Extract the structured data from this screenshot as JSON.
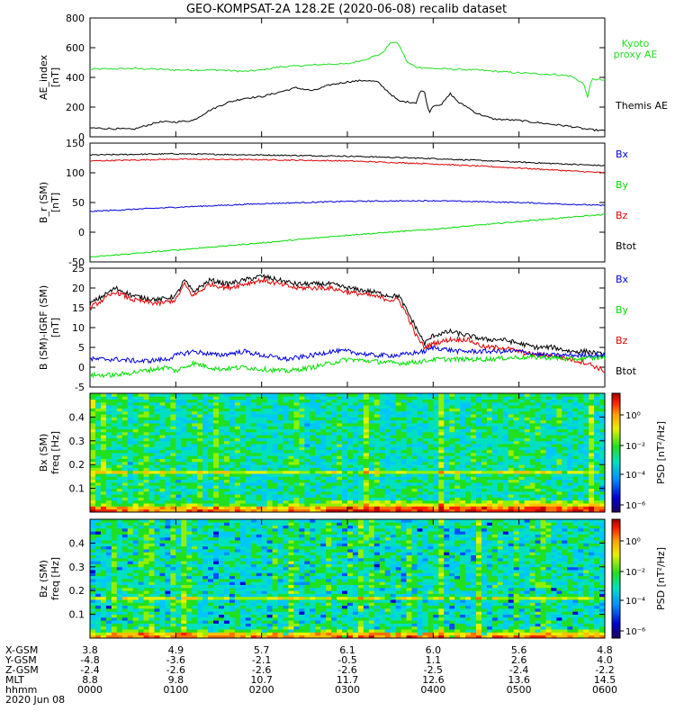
{
  "title": "GEO-KOMPSAT-2A 128.2E (2020-06-08) recalib dataset",
  "colors": {
    "black": "#000000",
    "red": "#e00000",
    "green": "#00e000",
    "blue": "#0000e0",
    "kyoto": "#20e020"
  },
  "chart_data": [
    {
      "type": "line",
      "title": "",
      "ylabel": "AE_index",
      "yunit": "[nT]",
      "ylim": [
        0,
        800
      ],
      "yticks": [
        "0",
        "200",
        "400",
        "600",
        "800"
      ],
      "xlim": [
        0,
        6
      ],
      "legend_placement": "right",
      "series": [
        {
          "name": "Kyoto proxy AE",
          "color": "#20e020",
          "x": [
            0,
            0.5,
            0.8,
            1.0,
            1.5,
            1.8,
            2.0,
            2.2,
            2.5,
            2.8,
            3.0,
            3.2,
            3.4,
            3.5,
            3.55,
            3.6,
            3.7,
            3.8,
            4.0,
            4.5,
            5.0,
            5.4,
            5.6,
            5.75,
            5.8,
            5.85,
            6.0
          ],
          "y": [
            455,
            460,
            455,
            450,
            450,
            440,
            450,
            470,
            480,
            490,
            490,
            520,
            560,
            630,
            640,
            620,
            500,
            470,
            460,
            450,
            430,
            420,
            410,
            360,
            270,
            390,
            380
          ]
        },
        {
          "name": "Themis AE",
          "color": "#000000",
          "x": [
            0,
            0.5,
            0.8,
            1.0,
            1.2,
            1.4,
            1.6,
            1.8,
            2.0,
            2.2,
            2.4,
            2.6,
            2.8,
            3.0,
            3.2,
            3.35,
            3.5,
            3.6,
            3.8,
            3.85,
            3.9,
            3.95,
            4.0,
            4.1,
            4.2,
            4.3,
            4.4,
            4.5,
            4.7,
            5.0,
            5.3,
            5.6,
            5.8,
            6.0
          ],
          "y": [
            60,
            50,
            100,
            100,
            110,
            180,
            230,
            260,
            270,
            300,
            330,
            310,
            350,
            370,
            380,
            370,
            290,
            240,
            230,
            310,
            300,
            160,
            210,
            220,
            290,
            230,
            200,
            160,
            120,
            110,
            90,
            70,
            50,
            40
          ]
        }
      ]
    },
    {
      "type": "line",
      "title": "",
      "ylabel": "B_r (SM)",
      "yunit": "[nT]",
      "ylim": [
        -50,
        150
      ],
      "yticks": [
        "-50",
        "0",
        "50",
        "100",
        "150"
      ],
      "xlim": [
        0,
        6
      ],
      "legend_placement": "right",
      "legend": [
        {
          "label": "Bx",
          "color": "#0000e0"
        },
        {
          "label": "By",
          "color": "#00e000"
        },
        {
          "label": "Bz",
          "color": "#e00000"
        },
        {
          "label": "Btot",
          "color": "#000000"
        }
      ],
      "series": [
        {
          "name": "Btot",
          "color": "#000000",
          "x": [
            0,
            1,
            2,
            3,
            4,
            5,
            6
          ],
          "y": [
            130,
            132,
            130,
            128,
            124,
            118,
            112
          ]
        },
        {
          "name": "Bz",
          "color": "#e00000",
          "x": [
            0,
            1,
            2,
            3,
            4,
            5,
            6
          ],
          "y": [
            120,
            123,
            122,
            120,
            115,
            108,
            100
          ]
        },
        {
          "name": "Bx",
          "color": "#0000e0",
          "x": [
            0,
            1,
            2,
            3,
            4,
            5,
            6
          ],
          "y": [
            35,
            42,
            48,
            52,
            53,
            50,
            45
          ]
        },
        {
          "name": "By",
          "color": "#00e000",
          "x": [
            0,
            1,
            2,
            3,
            4,
            5,
            6
          ],
          "y": [
            -42,
            -30,
            -18,
            -5,
            5,
            18,
            30
          ]
        }
      ]
    },
    {
      "type": "line",
      "title": "",
      "ylabel": "B (SM)-IGRF (SM)",
      "yunit": "[nT]",
      "ylim": [
        -5,
        25
      ],
      "yticks": [
        "-5",
        "0",
        "5",
        "10",
        "15",
        "20",
        "25"
      ],
      "xlim": [
        0,
        6
      ],
      "legend_placement": "right",
      "legend": [
        {
          "label": "Bx",
          "color": "#0000e0"
        },
        {
          "label": "By",
          "color": "#00e000"
        },
        {
          "label": "Bz",
          "color": "#e00000"
        },
        {
          "label": "Btot",
          "color": "#000000"
        }
      ],
      "series": [
        {
          "name": "Btot",
          "color": "#000000",
          "x": [
            0,
            0.3,
            0.5,
            0.8,
            1.0,
            1.1,
            1.2,
            1.4,
            1.6,
            1.8,
            2.0,
            2.2,
            2.4,
            2.6,
            2.8,
            3.0,
            3.3,
            3.5,
            3.6,
            3.7,
            3.8,
            3.9,
            4.0,
            4.2,
            4.4,
            4.6,
            4.8,
            5.0,
            5.2,
            5.4,
            5.6,
            5.8,
            6.0
          ],
          "y": [
            16,
            20,
            18,
            17,
            18,
            22,
            19,
            22,
            21,
            22,
            23,
            22,
            21,
            21,
            21,
            20,
            19,
            18,
            18,
            14,
            10,
            6,
            8,
            9,
            8,
            7,
            7,
            6,
            5,
            5,
            4,
            4,
            3
          ]
        },
        {
          "name": "Bz",
          "color": "#e00000",
          "x": [
            0,
            0.3,
            0.5,
            0.8,
            1.0,
            1.1,
            1.2,
            1.4,
            1.6,
            1.8,
            2.0,
            2.2,
            2.4,
            2.6,
            2.8,
            3.0,
            3.3,
            3.5,
            3.6,
            3.7,
            3.8,
            3.9,
            4.0,
            4.2,
            4.4,
            4.6,
            4.8,
            5.0,
            5.2,
            5.4,
            5.6,
            5.8,
            6.0
          ],
          "y": [
            15,
            19,
            17,
            16,
            17,
            21,
            18,
            21,
            20,
            21,
            22,
            21,
            20,
            20,
            20,
            19,
            18,
            17,
            17,
            13,
            8,
            5,
            6,
            7,
            7,
            5,
            5,
            4,
            3,
            3,
            2,
            1,
            -1
          ]
        },
        {
          "name": "Bx",
          "color": "#0000e0",
          "x": [
            0,
            0.3,
            0.6,
            0.9,
            1.0,
            1.2,
            1.5,
            1.8,
            2.0,
            2.3,
            2.6,
            2.8,
            3.0,
            3.3,
            3.6,
            3.9,
            4.0,
            4.3,
            4.6,
            5.0,
            5.3,
            5.6,
            6.0
          ],
          "y": [
            2,
            2,
            1.5,
            2,
            3,
            4,
            3,
            4,
            3,
            2,
            3,
            4,
            4,
            3,
            3,
            4,
            5,
            4,
            4,
            4,
            3,
            3,
            3
          ]
        },
        {
          "name": "By",
          "color": "#00e000",
          "x": [
            0,
            0.3,
            0.6,
            0.9,
            1.0,
            1.2,
            1.5,
            1.8,
            2.0,
            2.3,
            2.6,
            2.8,
            3.0,
            3.3,
            3.6,
            3.9,
            4.0,
            4.3,
            4.6,
            5.0,
            5.3,
            5.6,
            6.0
          ],
          "y": [
            -2,
            -2,
            -1,
            0,
            -1,
            1,
            -0.5,
            0,
            -0.5,
            -1,
            0,
            1,
            2,
            1.5,
            1,
            1.5,
            2,
            2,
            2,
            2.5,
            2.5,
            2,
            2.5
          ]
        }
      ]
    },
    {
      "type": "heatmap",
      "title": "",
      "ylabel": "Bx (SM)",
      "yunit_label": "freq [Hz]",
      "ylim": [
        0,
        0.5
      ],
      "yticks": [
        "0.1",
        "0.2",
        "0.3",
        "0.4"
      ],
      "colorbar_label": "PSD [nT²/Hz]",
      "colorbar_ticks": [
        "10⁰",
        "10⁻²",
        "10⁻⁴",
        "10⁻⁶"
      ]
    },
    {
      "type": "heatmap",
      "title": "",
      "ylabel": "Bz (SM)",
      "yunit_label": "freq [Hz]",
      "ylim": [
        0,
        0.5
      ],
      "yticks": [
        "0.1",
        "0.2",
        "0.3",
        "0.4"
      ],
      "colorbar_label": "PSD [nT²/Hz]",
      "colorbar_ticks": [
        "10⁰",
        "10⁻²",
        "10⁻⁴",
        "10⁻⁶"
      ]
    }
  ],
  "ephemeris": {
    "row_labels": [
      "X-GSM",
      "Y-GSM",
      "Z-GSM",
      "MLT",
      "hhmm",
      "2020 Jun 08"
    ],
    "columns": [
      [
        "3.8",
        "-4.8",
        "-2.4",
        "8.8",
        "0000"
      ],
      [
        "4.9",
        "-3.6",
        "-2.6",
        "9.8",
        "0100"
      ],
      [
        "5.7",
        "-2.1",
        "-2.6",
        "10.7",
        "0200"
      ],
      [
        "6.1",
        "-0.5",
        "-2.6",
        "11.7",
        "0300"
      ],
      [
        "6.0",
        "1.1",
        "-2.5",
        "12.6",
        "0400"
      ],
      [
        "5.6",
        "2.6",
        "-2.4",
        "13.6",
        "0500"
      ],
      [
        "4.8",
        "4.0",
        "-2.2",
        "14.5",
        "0600"
      ]
    ]
  }
}
